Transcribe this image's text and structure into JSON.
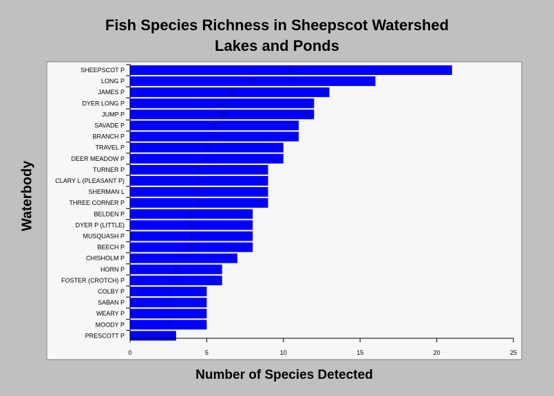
{
  "chart_data": {
    "type": "bar",
    "orientation": "horizontal",
    "title": [
      "Fish Species Richness in Sheepscot Watershed",
      "Lakes and Ponds"
    ],
    "xlabel": "Number of Species Detected",
    "ylabel": "Waterbody",
    "xlim": [
      0,
      25
    ],
    "xticks": [
      0,
      5,
      10,
      15,
      20,
      25
    ],
    "categories": [
      "SHEEPSCOT P",
      "LONG P",
      "JAMES P",
      "DYER LONG P",
      "JUMP P",
      "SAVADE P",
      "BRANCH P",
      "TRAVEL P",
      "DEER MEADOW P",
      "TURNER P",
      "CLARY L (PLEASANT P)",
      "SHERMAN L",
      "THREE CORNER P",
      "BELDEN P",
      "DYER P (LITTLE)",
      "MUSQUASH P",
      "BEECH P",
      "CHISHOLM P",
      "HORN P",
      "FOSTER (CROTCH) P",
      "COLBY P",
      "SABAN P",
      "WEARY P",
      "MOODY P",
      "PRESCOTT P"
    ],
    "values": [
      21,
      16,
      13,
      12,
      12,
      11,
      11,
      10,
      10,
      9,
      9,
      9,
      9,
      8,
      8,
      8,
      8,
      7,
      6,
      6,
      5,
      5,
      5,
      5,
      3
    ],
    "bar_color": "#0000ff",
    "plot_background": "#f7f7f7",
    "page_background": "#c0c0c0",
    "grid": false
  }
}
